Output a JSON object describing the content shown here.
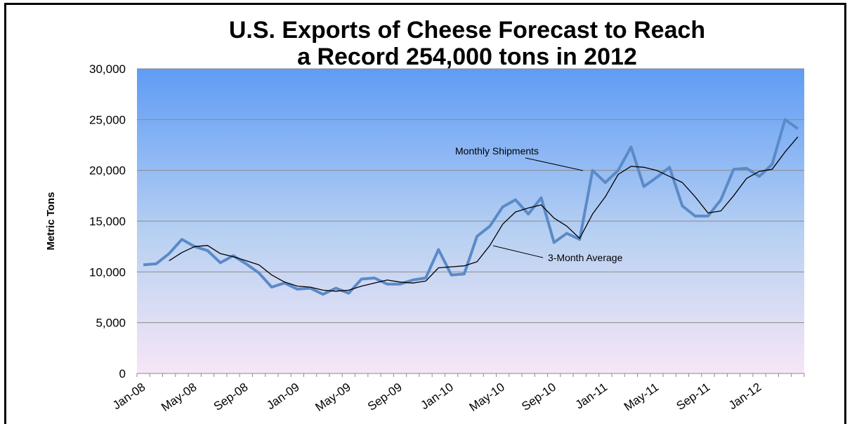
{
  "chart_data": {
    "type": "line",
    "title": "U.S. Exports of Cheese Forecast to Reach",
    "subtitle": "a Record 254,000 tons in 2012",
    "ylabel": "Metric Tons",
    "ylim": [
      0,
      30000
    ],
    "y_ticks": [
      "0",
      "5,000",
      "10,000",
      "15,000",
      "20,000",
      "25,000",
      "30,000"
    ],
    "x_ticks": [
      "Jan-08",
      "May-08",
      "Sep-08",
      "Jan-09",
      "May-09",
      "Sep-09",
      "Jan-10",
      "May-10",
      "Sep-10",
      "Jan-11",
      "May-11",
      "Sep-11",
      "Jan-12"
    ],
    "grid": true,
    "series": [
      {
        "name": "Monthly Shipments",
        "color": "#5b8ac8",
        "start": "Jan-08",
        "values": [
          10700,
          10800,
          11800,
          13200,
          12500,
          12100,
          10900,
          11600,
          10800,
          9900,
          8500,
          8900,
          8300,
          8400,
          7800,
          8400,
          7900,
          9300,
          9400,
          8800,
          8800,
          9200,
          9400,
          12200,
          9700,
          9800,
          13500,
          14500,
          16400,
          17100,
          15700,
          17300,
          12900,
          13800,
          13200,
          20000,
          18800,
          20000,
          22300,
          18400,
          19300,
          20300,
          16500,
          15500,
          15500,
          17100,
          20100,
          20200,
          19400,
          20600,
          25000,
          24100
        ]
      },
      {
        "name": "3-Month Average",
        "color": "#000000",
        "start": "Mar-08",
        "values": [
          11100,
          11900,
          12500,
          12600,
          11800,
          11500,
          11100,
          10700,
          9700,
          9000,
          8600,
          8500,
          8200,
          8100,
          8200,
          8600,
          8900,
          9200,
          9000,
          8900,
          9100,
          10400,
          10500,
          10600,
          11000,
          12600,
          14700,
          15900,
          16300,
          16600,
          15300,
          14500,
          13300,
          15700,
          17400,
          19600,
          20400,
          20300,
          20000,
          19400,
          18800,
          17400,
          15800,
          16000,
          17500,
          19200,
          19900,
          20100,
          21800,
          23300
        ]
      }
    ],
    "annotations": [
      "Monthly Shipments",
      "3-Month Average"
    ]
  }
}
